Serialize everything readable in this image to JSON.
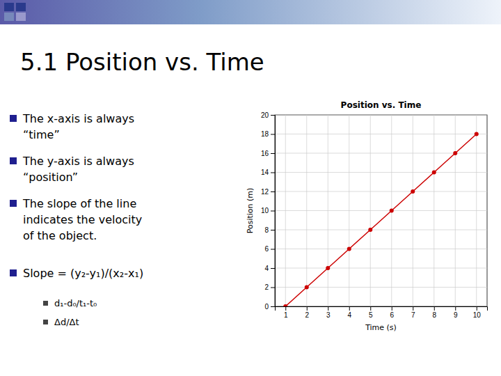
{
  "slide": {
    "title": "5.1   Position vs. Time",
    "bullets": [
      [
        "The x-axis is always",
        "“time”"
      ],
      [
        "The y-axis is always",
        "“position”"
      ],
      [
        "The slope of the line",
        "indicates the velocity",
        "of the object."
      ],
      [
        "Slope = (y₂-y₁)/(x₂-x₁)"
      ]
    ],
    "sub_bullets": [
      "d₁-d₀/t₁-t₀",
      "Δd/Δt"
    ]
  },
  "chart_data": {
    "type": "line",
    "title": "Position vs. Time",
    "x_label": "Time (s)",
    "y_label": "Position (m)",
    "x": [
      1,
      2,
      3,
      4,
      5,
      6,
      7,
      8,
      9,
      10
    ],
    "values": [
      0,
      2,
      4,
      6,
      8,
      10,
      12,
      14,
      16,
      18
    ],
    "xlim": [
      0.5,
      10.5
    ],
    "ylim": [
      0,
      20
    ],
    "xticks": [
      1,
      2,
      3,
      4,
      5,
      6,
      7,
      8,
      9,
      10
    ],
    "yticks": [
      0,
      2,
      4,
      6,
      8,
      10,
      12,
      14,
      16,
      18,
      20
    ],
    "color": "#cc0000",
    "marker": "circle",
    "grid": true
  }
}
